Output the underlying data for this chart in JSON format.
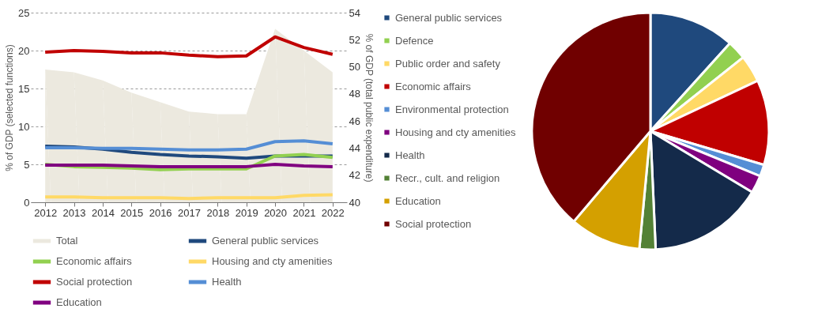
{
  "chart_data": [
    {
      "type": "line",
      "ylabel": "% of GDP (selected functions)",
      "y2label": "% of GDP (total public expenditure)",
      "categories": [
        "2012",
        "2013",
        "2014",
        "2015",
        "2016",
        "2017",
        "2018",
        "2019",
        "2020",
        "2021",
        "2022"
      ],
      "ylim": [
        0,
        25
      ],
      "yticks": [
        0,
        5,
        10,
        15,
        20,
        25
      ],
      "y2lim": [
        40,
        54
      ],
      "y2ticks": [
        40,
        42,
        44,
        46,
        48,
        50,
        52,
        54
      ],
      "grid": "y",
      "legend": "bottom",
      "line_style": "solid",
      "marker": "none",
      "series": [
        {
          "name": "Total",
          "type": "area",
          "axis": "y2",
          "color": "#ece9df",
          "values": [
            49.8,
            49.6,
            49.0,
            48.1,
            47.4,
            46.7,
            46.5,
            46.5,
            52.8,
            51.2,
            49.6
          ]
        },
        {
          "name": "General public services",
          "color": "#1f497d",
          "values": [
            7.4,
            7.3,
            7.0,
            6.6,
            6.3,
            6.1,
            6.0,
            5.8,
            6.1,
            6.1,
            6.1
          ]
        },
        {
          "name": "Economic affairs",
          "color": "#92d050",
          "values": [
            5.0,
            4.7,
            4.6,
            4.5,
            4.3,
            4.4,
            4.4,
            4.4,
            6.1,
            6.3,
            5.9
          ]
        },
        {
          "name": "Housing and cty amenities",
          "color": "#ffd966",
          "values": [
            0.7,
            0.7,
            0.6,
            0.6,
            0.6,
            0.5,
            0.6,
            0.6,
            0.6,
            0.9,
            1.0
          ]
        },
        {
          "name": "Social protection",
          "color": "#c00000",
          "values": [
            19.8,
            20.0,
            19.9,
            19.7,
            19.7,
            19.4,
            19.2,
            19.3,
            21.8,
            20.4,
            19.5
          ]
        },
        {
          "name": "Health",
          "color": "#558ed5",
          "values": [
            7.2,
            7.2,
            7.1,
            7.1,
            7.0,
            6.9,
            6.9,
            7.0,
            8.0,
            8.1,
            7.7
          ]
        },
        {
          "name": "Education",
          "color": "#800080",
          "values": [
            4.9,
            4.9,
            4.9,
            4.8,
            4.7,
            4.7,
            4.7,
            4.7,
            5.0,
            4.8,
            4.7
          ]
        }
      ]
    },
    {
      "type": "pie",
      "legend": "left",
      "categories": [
        "General public services",
        "Defence",
        "Public order and safety",
        "Economic affairs",
        "Environmental protection",
        "Housing and cty amenities",
        "Health",
        "Recr., cult. and religion",
        "Education",
        "Social protection"
      ],
      "values": [
        11.7,
        2.6,
        3.7,
        11.6,
        1.6,
        2.4,
        15.7,
        2.2,
        9.7,
        38.8
      ],
      "colors": [
        "#1f497d",
        "#92d050",
        "#ffd966",
        "#c00000",
        "#558ed5",
        "#7f007f",
        "#142a4a",
        "#538135",
        "#d4a000",
        "#700000"
      ]
    }
  ]
}
